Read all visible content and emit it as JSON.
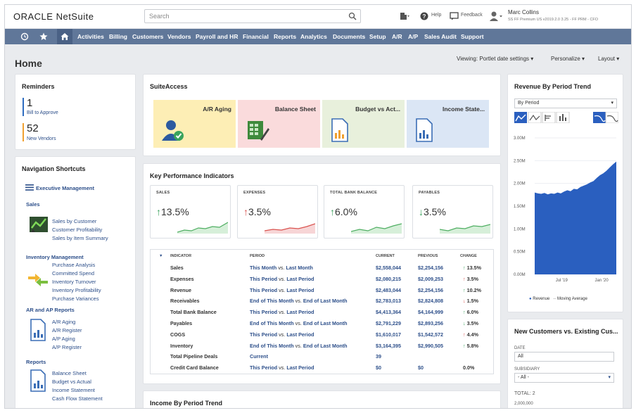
{
  "app": {
    "logo": "ORACLE NetSuite"
  },
  "search": {
    "placeholder": "Search"
  },
  "topbar": {
    "help": "Help",
    "feedback": "Feedback",
    "user_name": "Marc Collins",
    "user_role": "SS FF Premium US v2019.2.0 3.25 - FF PRM - CFO"
  },
  "nav": {
    "items": [
      "Activities",
      "Billing",
      "Customers",
      "Vendors",
      "Payroll and HR",
      "Financial",
      "Reports",
      "Analytics",
      "Documents",
      "Setup",
      "A/R",
      "A/P",
      "Sales Audit",
      "Support"
    ]
  },
  "page": {
    "title": "Home",
    "viewing": "Viewing: Portlet date settings",
    "personalize": "Personalize",
    "layout": "Layout"
  },
  "reminders": {
    "title": "Reminders",
    "items": [
      {
        "count": "1",
        "label": "Bill to Approve",
        "color": "#2d6cc0"
      },
      {
        "count": "52",
        "label": "New Vendors",
        "color": "#f0a030"
      }
    ]
  },
  "shortcuts": {
    "title": "Navigation Shortcuts",
    "exec": "Executive Management",
    "sales_head": "Sales",
    "sales": [
      "Sales by Customer",
      "Customer Profitability",
      "Sales by Item Summary"
    ],
    "inv_head": "Inventory Management",
    "inv": [
      "Purchase Analysis",
      "Committed Spend",
      "Inventory Turnover",
      "Inventory Profitability",
      "Purchase Variances"
    ],
    "arap_head": "AR and AP Reports",
    "arap": [
      "A/R Aging",
      "A/R Register",
      "A/P Aging",
      "A/P Register"
    ],
    "rep_head": "Reports",
    "rep": [
      "Balance Sheet",
      "Budget vs Actual",
      "Income Statement",
      "Cash Flow Statement"
    ]
  },
  "suiteaccess": {
    "title": "SuiteAccess",
    "tiles": [
      {
        "label": "A/R Aging",
        "color": "#fdeeb5"
      },
      {
        "label": "Balance Sheet",
        "color": "#fadbdc"
      },
      {
        "label": "Budget vs Act...",
        "color": "#e8f0dc"
      },
      {
        "label": "Income State...",
        "color": "#dbe6f5"
      }
    ]
  },
  "kpi": {
    "title": "Key Performance Indicators",
    "cards": [
      {
        "label": "SALES",
        "value": "13.5%",
        "dir": "up"
      },
      {
        "label": "EXPENSES",
        "value": "3.5%",
        "dir": "up-red"
      },
      {
        "label": "TOTAL BANK BALANCE",
        "value": "6.0%",
        "dir": "up"
      },
      {
        "label": "PAYABLES",
        "value": "3.5%",
        "dir": "down"
      }
    ],
    "headers": {
      "indicator": "INDICATOR",
      "period": "PERIOD",
      "current": "CURRENT",
      "previous": "PREVIOUS",
      "change": "CHANGE"
    },
    "rows": [
      {
        "ind": "Sales",
        "p1": "This Month",
        "p2": "Last Month",
        "cur": "$2,558,044",
        "prev": "$2,254,156",
        "chg": "13.5%",
        "dir": "up"
      },
      {
        "ind": "Expenses",
        "p1": "This Period",
        "p2": "Last Period",
        "cur": "$2,080,215",
        "prev": "$2,009,253",
        "chg": "3.5%",
        "dir": "up-red"
      },
      {
        "ind": "Revenue",
        "p1": "This Period",
        "p2": "Last Period",
        "cur": "$2,483,044",
        "prev": "$2,254,156",
        "chg": "10.2%",
        "dir": "up"
      },
      {
        "ind": "Receivables",
        "p1": "End of This Month",
        "p2": "End of Last Month",
        "cur": "$2,783,013",
        "prev": "$2,824,808",
        "chg": "1.5%",
        "dir": "down-red"
      },
      {
        "ind": "Total Bank Balance",
        "p1": "This Period",
        "p2": "Last Period",
        "cur": "$4,413,364",
        "prev": "$4,164,999",
        "chg": "6.0%",
        "dir": "up"
      },
      {
        "ind": "Payables",
        "p1": "End of This Month",
        "p2": "End of Last Month",
        "cur": "$2,791,229",
        "prev": "$2,893,256",
        "chg": "3.5%",
        "dir": "down"
      },
      {
        "ind": "COGS",
        "p1": "This Period",
        "p2": "Last Period",
        "cur": "$1,610,017",
        "prev": "$1,542,572",
        "chg": "4.4%",
        "dir": "up-red"
      },
      {
        "ind": "Inventory",
        "p1": "End of This Month",
        "p2": "End of Last Month",
        "cur": "$3,164,395",
        "prev": "$2,990,505",
        "chg": "5.8%",
        "dir": "up"
      },
      {
        "ind": "Total Pipeline Deals",
        "p1": "Current",
        "p2": "",
        "cur": "39",
        "prev": "",
        "chg": "",
        "dir": ""
      },
      {
        "ind": "Credit Card Balance",
        "p1": "This Period",
        "p2": "Last Period",
        "cur": "$0",
        "prev": "$0",
        "chg": "0.0%",
        "dir": ""
      }
    ]
  },
  "income_trend": {
    "title": "Income By Period Trend"
  },
  "revenue": {
    "title": "Revenue By Period Trend",
    "select": "By Period",
    "yticks": [
      "3.00M",
      "2.50M",
      "2.00M",
      "1.50M",
      "1.00M",
      "0.50M",
      "0.00M"
    ],
    "xticks": [
      "Jul '19",
      "Jan '20"
    ],
    "legend": [
      "Revenue",
      "Moving Average"
    ],
    "color": "#2a5fbf"
  },
  "customers": {
    "title": "New Customers vs. Existing Cus...",
    "date_label": "DATE",
    "date_value": "All",
    "sub_label": "SUBSIDIARY",
    "sub_value": "- All -",
    "total": "TOTAL: 2",
    "ytick": "2,000,000"
  }
}
